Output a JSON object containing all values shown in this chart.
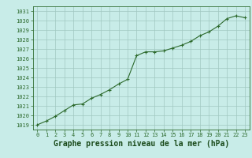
{
  "x": [
    0,
    1,
    2,
    3,
    4,
    5,
    6,
    7,
    8,
    9,
    10,
    11,
    12,
    13,
    14,
    15,
    16,
    17,
    18,
    19,
    20,
    21,
    22,
    23
  ],
  "y": [
    1019.0,
    1019.4,
    1019.9,
    1020.5,
    1021.1,
    1021.2,
    1021.8,
    1022.2,
    1022.7,
    1023.3,
    1023.8,
    1026.3,
    1026.7,
    1026.7,
    1026.8,
    1027.1,
    1027.4,
    1027.8,
    1028.4,
    1028.8,
    1029.4,
    1030.2,
    1030.5,
    1030.3
  ],
  "line_color": "#2d6a2d",
  "marker_color": "#2d6a2d",
  "bg_color": "#c8ece8",
  "grid_color": "#a0c8c0",
  "title": "Graphe pression niveau de la mer (hPa)",
  "ylim_min": 1018.5,
  "ylim_max": 1031.5,
  "xlim_min": -0.5,
  "xlim_max": 23.5,
  "yticks": [
    1019,
    1020,
    1021,
    1022,
    1023,
    1024,
    1025,
    1026,
    1027,
    1028,
    1029,
    1030,
    1031
  ],
  "xticks": [
    0,
    1,
    2,
    3,
    4,
    5,
    6,
    7,
    8,
    9,
    10,
    11,
    12,
    13,
    14,
    15,
    16,
    17,
    18,
    19,
    20,
    21,
    22,
    23
  ],
  "axis_color": "#2d6a2d",
  "tick_fontsize": 5.0,
  "title_fontsize": 7.0,
  "title_color": "#1a4a1a",
  "marker_size": 3.0,
  "line_width": 0.8
}
